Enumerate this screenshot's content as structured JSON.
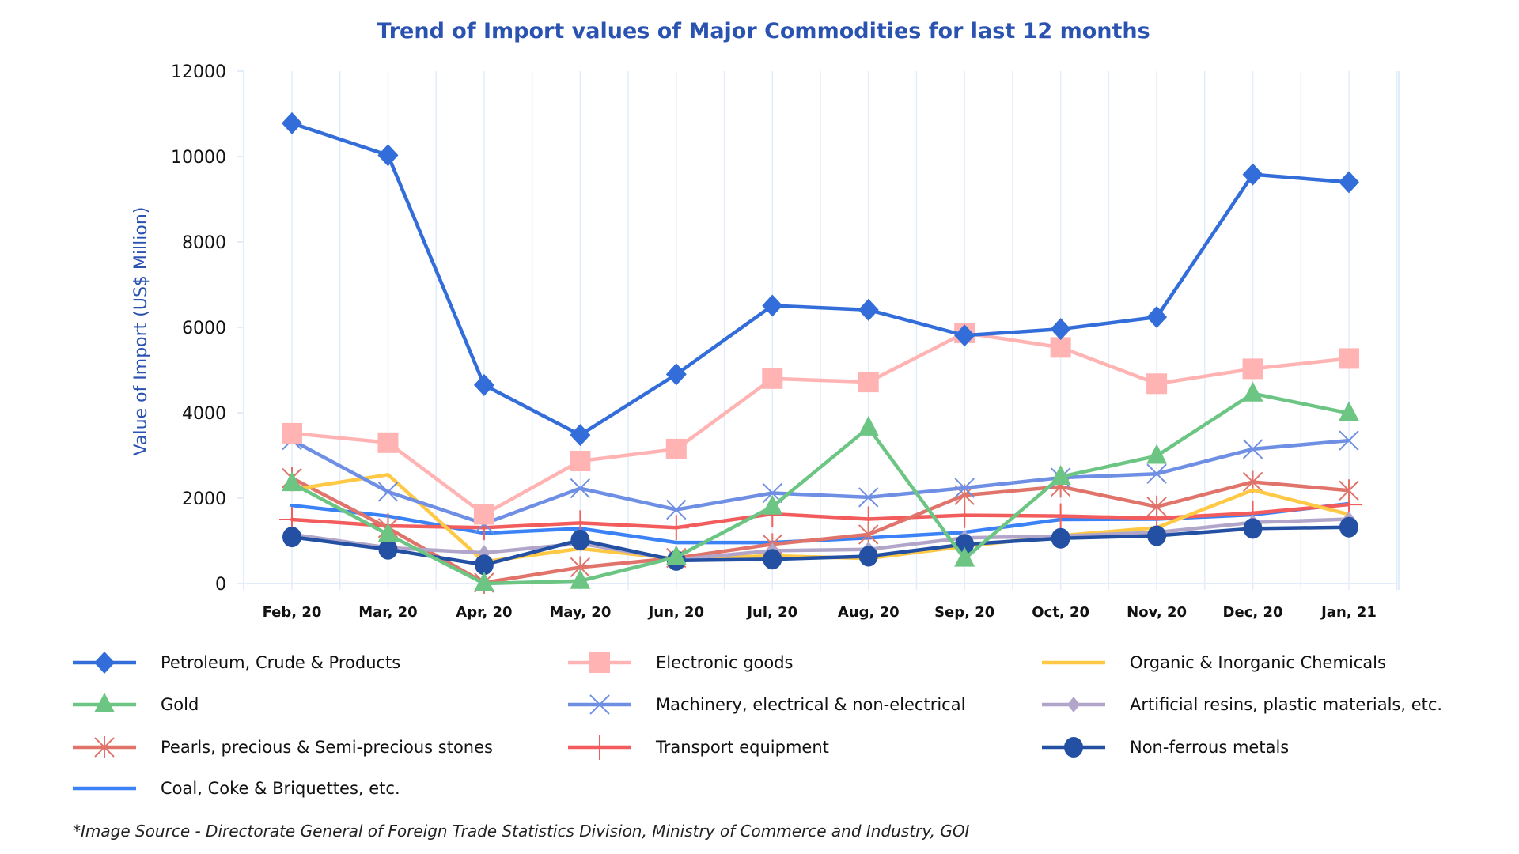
{
  "chart_data": {
    "type": "line",
    "title": "Trend of Import values of Major Commodities for last 12 months",
    "xlabel": "",
    "ylabel": "Value of Import (US$ Million)",
    "ylim": [
      0,
      12000
    ],
    "yticks": [
      0,
      2000,
      4000,
      6000,
      8000,
      10000,
      12000
    ],
    "grid": true,
    "legend_position": "bottom",
    "categories": [
      "Feb, 20",
      "Mar, 20",
      "Apr, 20",
      "May, 20",
      "Jun, 20",
      "Jul, 20",
      "Aug, 20",
      "Sep, 20",
      "Oct, 20",
      "Nov, 20",
      "Dec, 20",
      "Jan, 21"
    ],
    "series": [
      {
        "name": "Petroleum, Crude & Products",
        "color": "#336dd9",
        "marker": "diamond",
        "values": [
          10780,
          10030,
          4650,
          3480,
          4900,
          6510,
          6410,
          5810,
          5960,
          6240,
          9580,
          9400
        ]
      },
      {
        "name": "Electronic goods",
        "color": "#ffb3b3",
        "marker": "square",
        "values": [
          3520,
          3300,
          1620,
          2870,
          3150,
          4800,
          4720,
          5870,
          5530,
          4680,
          5030,
          5270
        ]
      },
      {
        "name": "Organic & Inorganic Chemicals",
        "color": "#ffc845",
        "marker": "none",
        "values": [
          2200,
          2550,
          510,
          820,
          580,
          650,
          590,
          870,
          1120,
          1310,
          2190,
          1620
        ]
      },
      {
        "name": "Gold",
        "color": "#6cc583",
        "marker": "triangle",
        "values": [
          2350,
          1150,
          0,
          60,
          620,
          1800,
          3650,
          580,
          2500,
          2990,
          4450,
          3990
        ]
      },
      {
        "name": "Machinery, electrical & non-electrical",
        "color": "#6e8fe3",
        "marker": "x",
        "values": [
          3360,
          2150,
          1400,
          2230,
          1730,
          2120,
          2020,
          2240,
          2480,
          2570,
          3150,
          3350
        ]
      },
      {
        "name": "Artificial resins, plastic materials, etc.",
        "color": "#b1a6c9",
        "marker": "small-diamond",
        "values": [
          1150,
          840,
          720,
          940,
          560,
          770,
          800,
          1070,
          1110,
          1200,
          1430,
          1510
        ]
      },
      {
        "name": "Pearls, precious & Semi-precious stones",
        "color": "#e0736a",
        "marker": "asterisk",
        "values": [
          2470,
          1300,
          20,
          380,
          600,
          920,
          1150,
          2070,
          2270,
          1800,
          2380,
          2180
        ]
      },
      {
        "name": "Transport equipment",
        "color": "#f25c5c",
        "marker": "plus",
        "values": [
          1500,
          1350,
          1310,
          1420,
          1310,
          1630,
          1510,
          1600,
          1580,
          1530,
          1650,
          1850
        ]
      },
      {
        "name": "Non-ferrous metals",
        "color": "#2350a3",
        "marker": "circle",
        "values": [
          1090,
          800,
          440,
          1020,
          540,
          570,
          640,
          920,
          1060,
          1120,
          1290,
          1320
        ]
      },
      {
        "name": "Coal, Coke & Briquettes, etc.",
        "color": "#3b82f6",
        "marker": "none",
        "values": [
          1830,
          1580,
          1180,
          1290,
          960,
          960,
          1070,
          1200,
          1500,
          1510,
          1610,
          1870
        ]
      }
    ],
    "note": "*Image Source - Directorate General of Foreign Trade Statistics Division, Ministry of Commerce and Industry, GOI"
  }
}
